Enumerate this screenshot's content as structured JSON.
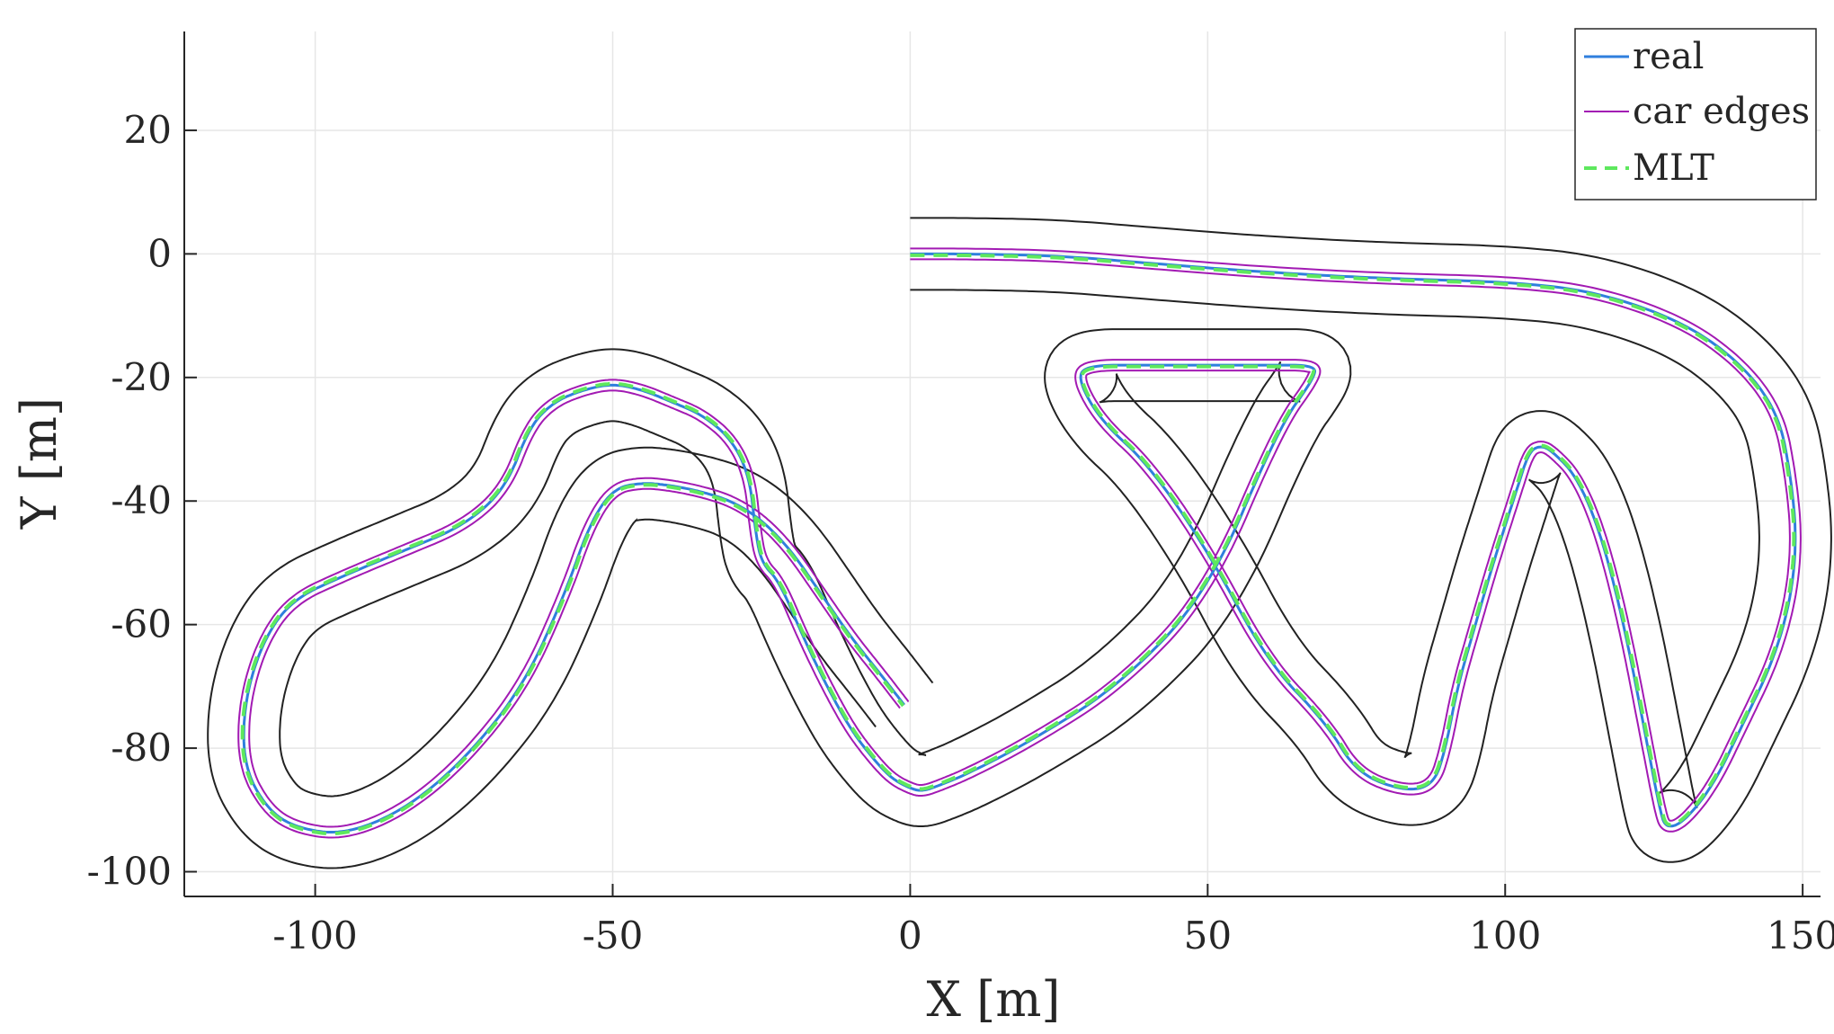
{
  "chart_data": {
    "type": "line",
    "xlabel": "X [m]",
    "ylabel": "Y [m]",
    "xlim": [
      -122,
      153
    ],
    "ylim": [
      -104,
      36
    ],
    "grid": true,
    "legend_position": "top-right",
    "x_ticks": [
      -100,
      -50,
      0,
      50,
      100,
      150
    ],
    "y_ticks": [
      20,
      0,
      -20,
      -40,
      -60,
      -80,
      -100
    ],
    "x_tick_labels": [
      "-100",
      "-50",
      "0",
      "50",
      "100",
      "150"
    ],
    "y_tick_labels": [
      "20",
      "0",
      "-20",
      "-40",
      "-60",
      "-80",
      "-100"
    ],
    "colors": {
      "real": "#2f7fdd",
      "car_edges": "#a21ab3",
      "MLT": "#5ee85e",
      "track_boundary": "#222222"
    },
    "series": [
      {
        "name": "real",
        "style": "solid",
        "x": [
          0,
          10,
          25,
          40,
          60,
          80,
          100,
          115,
          130,
          140,
          146,
          148,
          149,
          148,
          145,
          140,
          135,
          130,
          127,
          126,
          124,
          120,
          116,
          112,
          108,
          106,
          104,
          102,
          98,
          95,
          92,
          90,
          88,
          83,
          75,
          70,
          60,
          50,
          40,
          32,
          28,
          30,
          40,
          50,
          60,
          68,
          68,
          62,
          50,
          35,
          20,
          10,
          5,
          2,
          0,
          -3,
          -6,
          -10,
          -14,
          -18,
          -22,
          -25,
          -26,
          -27,
          -30,
          -35,
          -40,
          -45,
          -50,
          -55,
          -60,
          -64,
          -68,
          -75,
          -85,
          -95,
          -104,
          -109,
          -112,
          -112,
          -108,
          -103,
          -95,
          -85,
          -75,
          -65,
          -58,
          -54,
          -50,
          -45,
          -40,
          -35,
          -30,
          -25,
          -20,
          -15,
          -10,
          -5,
          -1
        ],
        "y": [
          0,
          0,
          -0.3,
          -1.5,
          -3,
          -4,
          -4.5,
          -6,
          -11,
          -18,
          -26,
          -36,
          -46,
          -56,
          -66,
          -76,
          -86,
          -92,
          -93,
          -90,
          -80,
          -60,
          -45,
          -36,
          -32,
          -31,
          -32,
          -38,
          -50,
          -60,
          -70,
          -80,
          -86,
          -87,
          -84,
          -76,
          -66,
          -48,
          -34,
          -27,
          -20,
          -18,
          -18,
          -18,
          -18,
          -18,
          -20,
          -28,
          -55,
          -70,
          -79,
          -84,
          -86,
          -87,
          -86.5,
          -85,
          -82,
          -77,
          -70,
          -62,
          -53,
          -50,
          -45,
          -36,
          -30,
          -26,
          -24,
          -22,
          -21,
          -22,
          -24,
          -28,
          -38,
          -44,
          -48,
          -52,
          -56,
          -63,
          -73,
          -83,
          -90,
          -93,
          -94,
          -90,
          -82,
          -70,
          -55,
          -44,
          -38,
          -37,
          -37.5,
          -38.5,
          -40,
          -43,
          -48,
          -55,
          -62,
          -68,
          -73
        ]
      },
      {
        "name": "car edges",
        "style": "solid"
      },
      {
        "name": "MLT",
        "style": "dashed"
      }
    ]
  }
}
